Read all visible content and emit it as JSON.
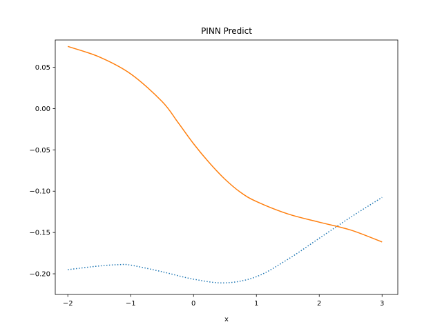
{
  "chart_data": {
    "type": "line",
    "title": "PINN Predict",
    "xlabel": "x",
    "ylabel": "",
    "xlim": [
      -2.2,
      3.25
    ],
    "ylim": [
      -0.225,
      0.083
    ],
    "grid": false,
    "legend": "none",
    "x_ticks": [
      -2,
      -1,
      0,
      1,
      2,
      3
    ],
    "x_tick_labels": [
      "−2",
      "−1",
      "0",
      "1",
      "2",
      "3"
    ],
    "y_ticks": [
      0.05,
      0.0,
      -0.05,
      -0.1,
      -0.15,
      -0.2
    ],
    "y_tick_labels": [
      "0.05",
      "0.00",
      "−0.05",
      "−0.10",
      "−0.15",
      "−0.20"
    ],
    "series": [
      {
        "color": "#1f77b4",
        "linestyle": "dotted",
        "x": [
          -2.0,
          -1.5,
          -1.2,
          -1.0,
          -0.5,
          0.0,
          0.5,
          1.0,
          1.5,
          2.0,
          2.5,
          3.0
        ],
        "y": [
          -0.195,
          -0.1905,
          -0.189,
          -0.1895,
          -0.1975,
          -0.2065,
          -0.211,
          -0.2035,
          -0.1825,
          -0.157,
          -0.1315,
          -0.1075
        ]
      },
      {
        "color": "#ff7f0e",
        "linestyle": "solid",
        "x": [
          -2.0,
          -1.5,
          -1.0,
          -0.5,
          -0.25,
          0.0,
          0.25,
          0.5,
          0.75,
          1.0,
          1.5,
          2.0,
          2.5,
          3.0
        ],
        "y": [
          0.0752,
          0.0625,
          0.042,
          0.0085,
          -0.0165,
          -0.0425,
          -0.0655,
          -0.0855,
          -0.1015,
          -0.1125,
          -0.1275,
          -0.1375,
          -0.147,
          -0.1615
        ]
      }
    ]
  }
}
